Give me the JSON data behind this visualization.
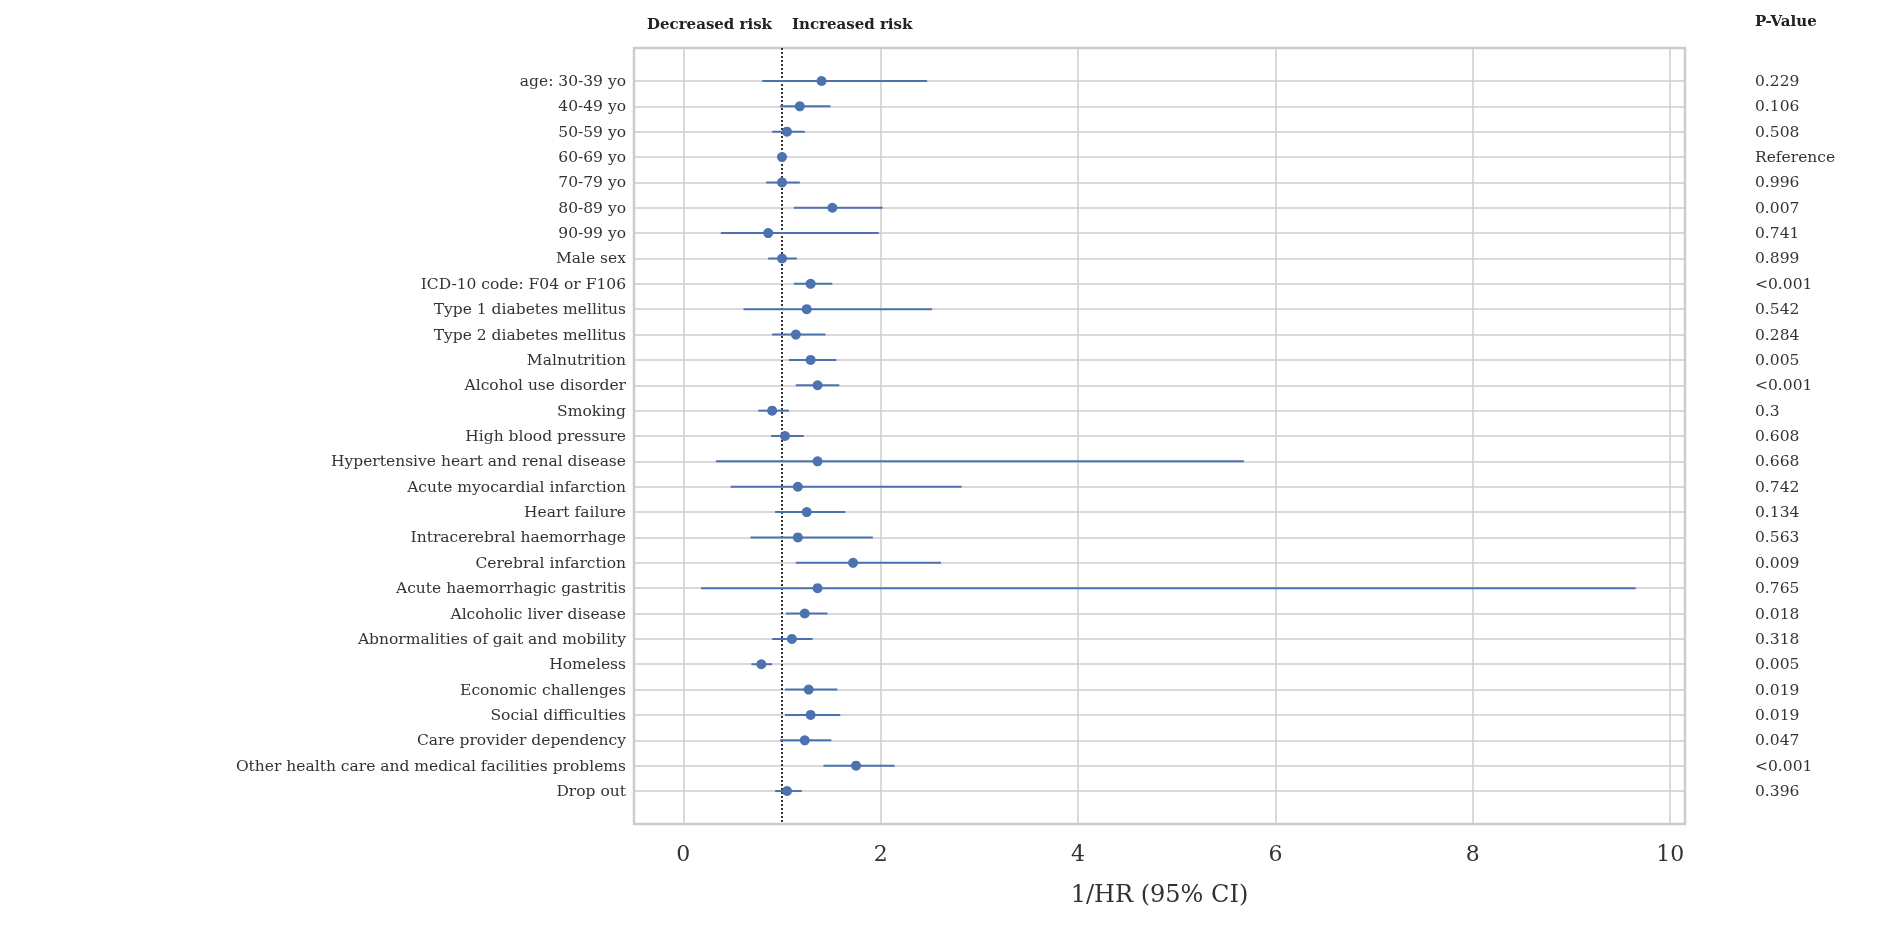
{
  "chart_data": {
    "type": "scatter",
    "orientation": "horizontal",
    "categories": [
      "age: 30-39 yo",
      "40-49 yo",
      "50-59 yo",
      "60-69 yo",
      "70-79 yo",
      "80-89 yo",
      "90-99 yo",
      "Male sex",
      "ICD-10 code: F04 or F106",
      "Type 1 diabetes mellitus",
      "Type 2 diabetes mellitus",
      "Malnutrition",
      "Alcohol use disorder",
      "Smoking",
      "High blood pressure",
      "Hypertensive heart and renal disease",
      "Acute myocardial infarction",
      "Heart failure",
      "Intracerebral haemorrhage",
      "Cerebral infarction",
      "Acute haemorrhagic gastritis",
      "Alcoholic liver disease",
      "Abnormalities of gait and mobility",
      "Homeless",
      "Economic challenges",
      "Social difficulties",
      "Care provider dependency",
      "Other health care and medical facilities problems",
      "Drop out"
    ],
    "y2_categories": [
      "0.229",
      "0.106",
      "0.508",
      "Reference",
      "0.996",
      "0.007",
      "0.741",
      "0.899",
      "<0.001",
      "0.542",
      "0.284",
      "0.005",
      "<0.001",
      "0.3",
      "0.608",
      "0.668",
      "0.742",
      "0.134",
      "0.563",
      "0.009",
      "0.765",
      "0.018",
      "0.318",
      "0.005",
      "0.019",
      "0.019",
      "0.047",
      "<0.001",
      "0.396"
    ],
    "values": [
      1.4,
      1.18,
      1.05,
      1.0,
      1.0,
      1.51,
      0.86,
      1.0,
      1.29,
      1.25,
      1.14,
      1.29,
      1.36,
      0.9,
      1.03,
      1.36,
      1.16,
      1.25,
      1.16,
      1.72,
      1.36,
      1.23,
      1.1,
      0.79,
      1.27,
      1.29,
      1.23,
      1.75,
      1.05
    ],
    "errors": [
      [
        0.8,
        2.47
      ],
      [
        0.98,
        1.49
      ],
      [
        0.9,
        1.23
      ],
      null,
      [
        0.84,
        1.18
      ],
      [
        1.12,
        2.02
      ],
      [
        0.38,
        1.98
      ],
      [
        0.86,
        1.15
      ],
      [
        1.12,
        1.51
      ],
      [
        0.61,
        2.52
      ],
      [
        0.9,
        1.44
      ],
      [
        1.07,
        1.55
      ],
      [
        1.14,
        1.58
      ],
      [
        0.76,
        1.07
      ],
      [
        0.89,
        1.22
      ],
      [
        0.33,
        5.68
      ],
      [
        0.48,
        2.82
      ],
      [
        0.93,
        1.64
      ],
      [
        0.68,
        1.92
      ],
      [
        1.14,
        2.61
      ],
      [
        0.18,
        9.65
      ],
      [
        1.04,
        1.46
      ],
      [
        0.9,
        1.31
      ],
      [
        0.69,
        0.9
      ],
      [
        1.03,
        1.56
      ],
      [
        1.03,
        1.59
      ],
      [
        0.98,
        1.5
      ],
      [
        1.42,
        2.14
      ],
      [
        0.93,
        1.2
      ]
    ],
    "color": "#4c72b0",
    "marker": "circle",
    "xlabel": "1/HR (95% CI)",
    "y2label": "P-Value",
    "xlim": [
      -0.5,
      10.15
    ],
    "xticks": [
      0,
      2,
      4,
      6,
      8,
      10
    ],
    "grid": true,
    "ref_lines": [
      {
        "axis": "x",
        "value": 1,
        "color": "#333333",
        "line_style": "dotted"
      }
    ],
    "annotations": [
      "Decreased risk",
      "Increased risk"
    ]
  }
}
